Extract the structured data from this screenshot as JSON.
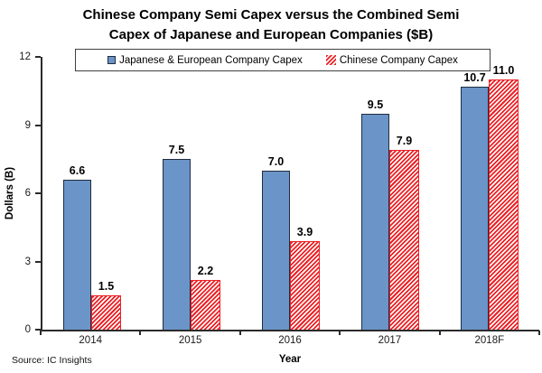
{
  "title_line1": "Chinese Company Semi Capex versus the Combined Semi",
  "title_line2": "Capex of Japanese and European Companies ($B)",
  "source": "Source: IC Insights",
  "colors": {
    "blue_fill": "#6b94c8",
    "blue_border": "#1f2d3f",
    "red": "#ed2024",
    "axis": "#2b2b2b",
    "legend_border": "#404040"
  },
  "chart_data": {
    "type": "bar",
    "title": "Chinese Company Semi Capex versus the Combined Semi Capex of Japanese and European Companies ($B)",
    "categories": [
      "2014",
      "2015",
      "2016",
      "2017",
      "2018F"
    ],
    "series": [
      {
        "name": "Japanese & European Company Capex",
        "style": "solid-blue",
        "values": [
          6.6,
          7.5,
          7.0,
          9.5,
          10.7
        ]
      },
      {
        "name": "Chinese Company Capex",
        "style": "red-hatch",
        "values": [
          1.5,
          2.2,
          3.9,
          7.9,
          11.0
        ]
      }
    ],
    "xlabel": "Year",
    "ylabel": "Dollars (B)",
    "ylim": [
      0,
      12
    ],
    "yticks": [
      0,
      3,
      6,
      9,
      12
    ],
    "legend_position": "top",
    "grid": false,
    "value_labels": true
  }
}
